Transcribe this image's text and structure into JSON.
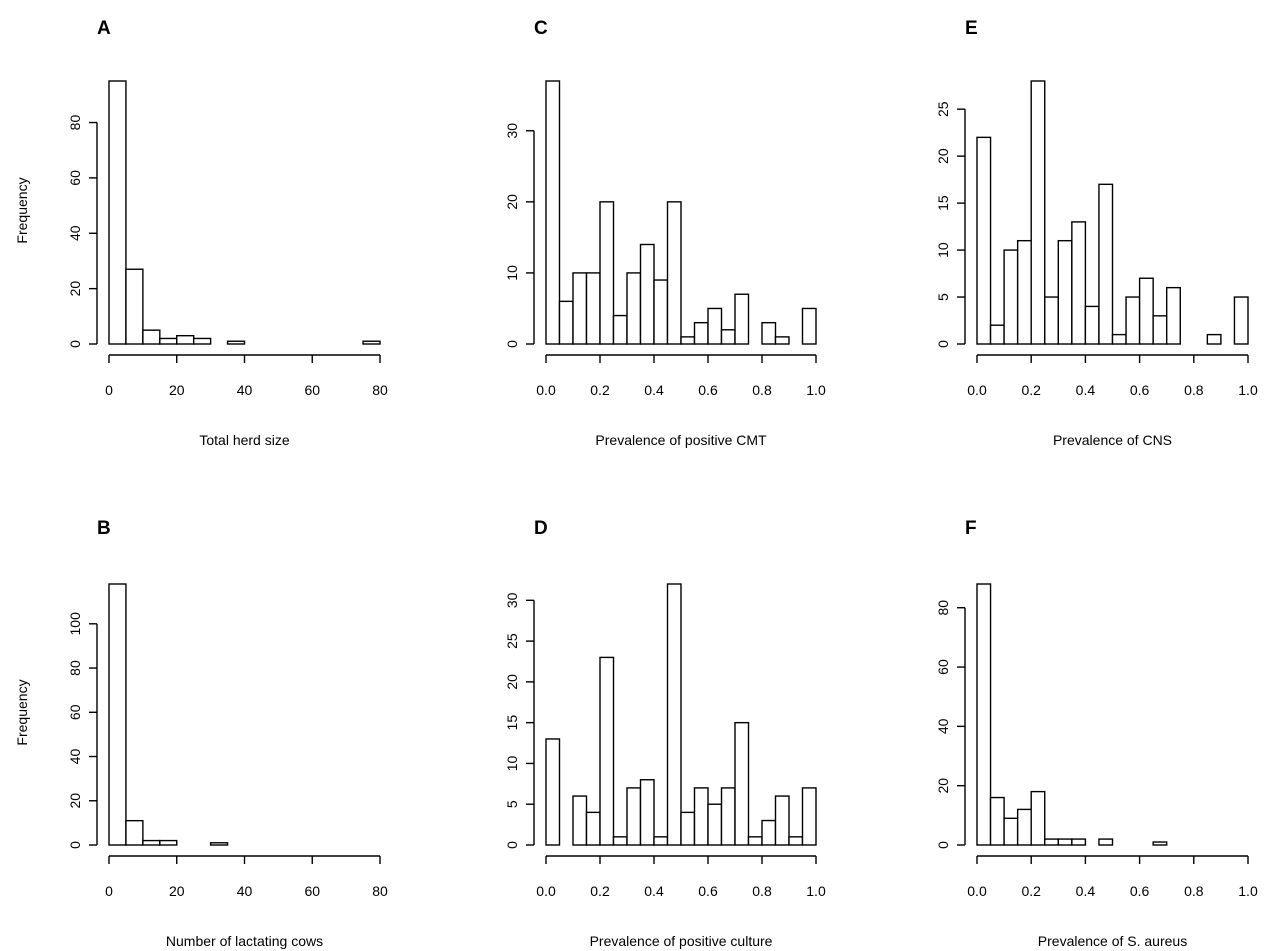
{
  "chart_data": [
    {
      "panel": "A",
      "type": "bar",
      "xlabel": "Total herd size",
      "ylabel": "Frequency",
      "xlim": [
        0,
        80
      ],
      "ylim": [
        0,
        95
      ],
      "xticks": [
        0,
        20,
        40,
        60,
        80
      ],
      "yticks": [
        0,
        20,
        40,
        60,
        80
      ],
      "bin_edges": [
        0,
        5,
        10,
        15,
        20,
        25,
        30,
        35,
        40,
        45,
        50,
        55,
        60,
        65,
        70,
        75,
        80
      ],
      "values": [
        95,
        27,
        5,
        2,
        3,
        2,
        0,
        1,
        0,
        0,
        0,
        0,
        0,
        0,
        0,
        1
      ]
    },
    {
      "panel": "C",
      "type": "bar",
      "xlabel": "Prevalence of positive CMT",
      "ylabel": "",
      "xlim": [
        0,
        1
      ],
      "ylim": [
        0,
        37
      ],
      "xticks": [
        "0.0",
        "0.2",
        "0.4",
        "0.6",
        "0.8",
        "1.0"
      ],
      "yticks": [
        0,
        10,
        20,
        30
      ],
      "bin_edges": [
        0,
        0.05,
        0.1,
        0.15,
        0.2,
        0.25,
        0.3,
        0.35,
        0.4,
        0.45,
        0.5,
        0.55,
        0.6,
        0.65,
        0.7,
        0.75,
        0.8,
        0.85,
        0.9,
        0.95,
        1.0
      ],
      "values": [
        37,
        6,
        10,
        10,
        20,
        4,
        10,
        14,
        9,
        20,
        1,
        3,
        5,
        2,
        7,
        0,
        3,
        1,
        0,
        5
      ]
    },
    {
      "panel": "E",
      "type": "bar",
      "xlabel": "Prevalence of CNS",
      "ylabel": "",
      "xlim": [
        0,
        1
      ],
      "ylim": [
        0,
        28
      ],
      "xticks": [
        "0.0",
        "0.2",
        "0.4",
        "0.6",
        "0.8",
        "1.0"
      ],
      "yticks": [
        0,
        5,
        10,
        15,
        20,
        25
      ],
      "bin_edges": [
        0,
        0.05,
        0.1,
        0.15,
        0.2,
        0.25,
        0.3,
        0.35,
        0.4,
        0.45,
        0.5,
        0.55,
        0.6,
        0.65,
        0.7,
        0.75,
        0.8,
        0.85,
        0.9,
        0.95,
        1.0
      ],
      "values": [
        22,
        2,
        10,
        11,
        28,
        5,
        11,
        13,
        4,
        17,
        1,
        5,
        7,
        3,
        6,
        0,
        0,
        1,
        0,
        5
      ]
    },
    {
      "panel": "B",
      "type": "bar",
      "xlabel": "Number of lactating cows",
      "ylabel": "Frequency",
      "xlim": [
        0,
        80
      ],
      "ylim": [
        0,
        118
      ],
      "xticks": [
        0,
        20,
        40,
        60,
        80
      ],
      "yticks": [
        0,
        20,
        40,
        60,
        80,
        100
      ],
      "bin_edges": [
        0,
        5,
        10,
        15,
        20,
        25,
        30,
        35
      ],
      "values": [
        118,
        11,
        2,
        2,
        0,
        0,
        1
      ]
    },
    {
      "panel": "D",
      "type": "bar",
      "xlabel": "Prevalence of positive culture",
      "ylabel": "",
      "xlim": [
        0,
        1
      ],
      "ylim": [
        0,
        32
      ],
      "xticks": [
        "0.0",
        "0.2",
        "0.4",
        "0.6",
        "0.8",
        "1.0"
      ],
      "yticks": [
        0,
        5,
        10,
        15,
        20,
        25,
        30
      ],
      "bin_edges": [
        0,
        0.05,
        0.1,
        0.15,
        0.2,
        0.25,
        0.3,
        0.35,
        0.4,
        0.45,
        0.5,
        0.55,
        0.6,
        0.65,
        0.7,
        0.75,
        0.8,
        0.85,
        0.9,
        0.95,
        1.0
      ],
      "values": [
        13,
        0,
        6,
        4,
        23,
        1,
        7,
        8,
        1,
        32,
        4,
        7,
        5,
        7,
        15,
        1,
        3,
        6,
        1,
        7
      ]
    },
    {
      "panel": "F",
      "type": "bar",
      "xlabel": "Prevalence of S. aureus",
      "ylabel": "",
      "xlim": [
        0,
        1
      ],
      "ylim": [
        0,
        88
      ],
      "xticks": [
        "0.0",
        "0.2",
        "0.4",
        "0.6",
        "0.8",
        "1.0"
      ],
      "yticks": [
        0,
        20,
        40,
        60,
        80
      ],
      "bin_edges": [
        0,
        0.05,
        0.1,
        0.15,
        0.2,
        0.25,
        0.3,
        0.35,
        0.4,
        0.45,
        0.5,
        0.55,
        0.6,
        0.65,
        0.7
      ],
      "values": [
        88,
        16,
        9,
        12,
        18,
        2,
        2,
        2,
        0,
        2,
        0,
        0,
        0,
        1
      ]
    }
  ]
}
